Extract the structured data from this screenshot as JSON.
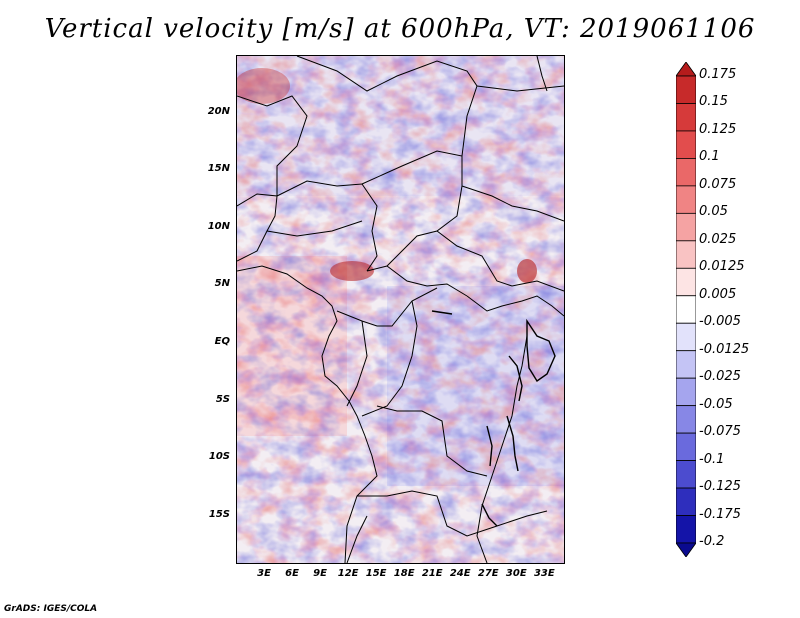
{
  "title": "Vertical velocity [m/s] at 600hPa, VT: 2019061106",
  "credit": "GrADS: IGES/COLA",
  "map": {
    "lat_range": [
      -19,
      25
    ],
    "lon_range": [
      0,
      35
    ],
    "lat_ticks": [
      "20N",
      "15N",
      "10N",
      "5N",
      "EQ",
      "5S",
      "10S",
      "15S"
    ],
    "lat_values": [
      20,
      15,
      10,
      5,
      0,
      -5,
      -10,
      -15
    ],
    "lon_ticks": [
      "3E",
      "6E",
      "9E",
      "12E",
      "15E",
      "18E",
      "21E",
      "24E",
      "27E",
      "30E",
      "33E"
    ],
    "lon_values": [
      3,
      6,
      9,
      12,
      15,
      18,
      21,
      24,
      27,
      30,
      33
    ]
  },
  "colorbar": {
    "labels": [
      "0.175",
      "0.15",
      "0.125",
      "0.1",
      "0.075",
      "0.05",
      "0.025",
      "0.0125",
      "0.005",
      "-0.005",
      "-0.0125",
      "-0.025",
      "-0.05",
      "-0.075",
      "-0.1",
      "-0.125",
      "-0.175",
      "-0.2"
    ],
    "colors": [
      "#b51c1c",
      "#c72a2a",
      "#d63a3a",
      "#e24d4d",
      "#ea6868",
      "#f08484",
      "#f5a3a3",
      "#f9c3c3",
      "#fde4e4",
      "#ffffff",
      "#e2e2fb",
      "#c4c4f5",
      "#a5a5ee",
      "#8787e6",
      "#6a6add",
      "#4c4ccf",
      "#2e2ebd",
      "#1414a8",
      "#0a0a8f"
    ]
  }
}
